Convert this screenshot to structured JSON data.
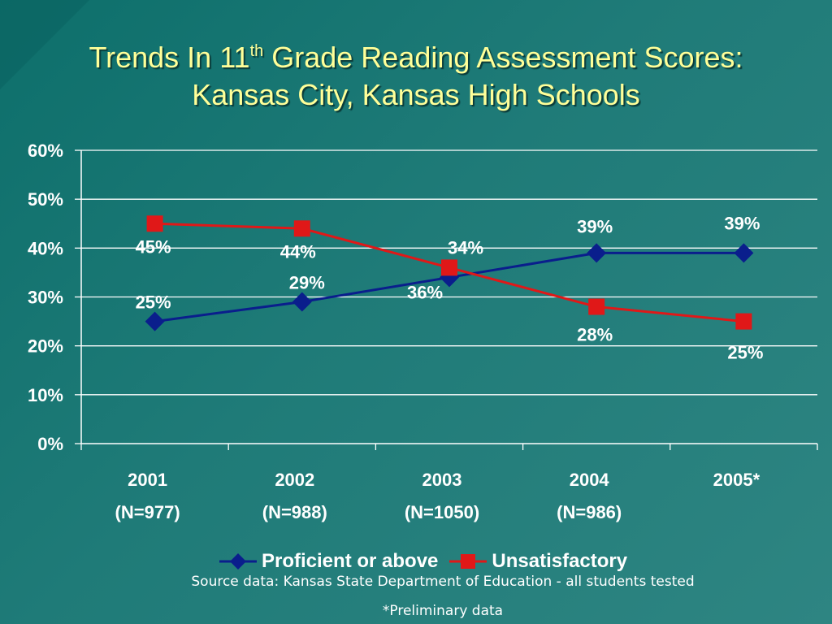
{
  "slide": {
    "title_line1_a": "Trends In 11",
    "title_sup": "th",
    "title_line1_b": " Grade Reading Assessment Scores:",
    "title_line2": "Kansas City, Kansas High Schools",
    "source": "Source data: Kansas State Department of Education - all students tested",
    "note": "*Preliminary data"
  },
  "chart_data": {
    "type": "line",
    "categories": [
      [
        "2001",
        "(N=977)"
      ],
      [
        "2002",
        "(N=988)"
      ],
      [
        "2003",
        "(N=1050)"
      ],
      [
        "2004",
        "(N=986)"
      ],
      [
        "2005*",
        ""
      ]
    ],
    "y_ticks": [
      "0%",
      "10%",
      "20%",
      "30%",
      "40%",
      "50%",
      "60%"
    ],
    "ylim": [
      0,
      60
    ],
    "grid": true,
    "legend_position": "bottom",
    "series": [
      {
        "name": "Proficient or above",
        "color": "#0a1e8c",
        "marker": "diamond",
        "values": [
          25,
          29,
          34,
          39,
          39
        ],
        "labels": [
          "25%",
          "29%",
          "34%",
          "39%",
          "39%"
        ]
      },
      {
        "name": "Unsatisfactory",
        "color": "#e01818",
        "marker": "square",
        "values": [
          45,
          44,
          36,
          28,
          25
        ],
        "labels": [
          "45%",
          "44%",
          "36%",
          "28%",
          "25%"
        ]
      }
    ]
  }
}
